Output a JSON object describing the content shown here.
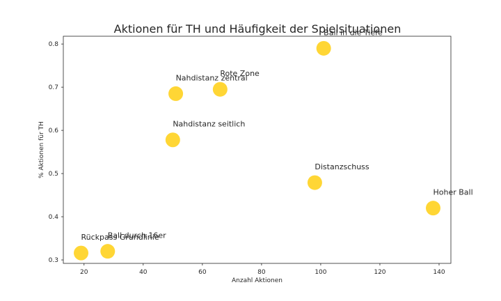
{
  "chart_data": {
    "type": "scatter",
    "title": "Aktionen für TH und Häufigkeit der Spielsituationen",
    "xlabel": "Anzahl Aktionen",
    "ylabel": "% Aktionen für TH",
    "xlim": [
      13,
      144
    ],
    "ylim": [
      0.292,
      0.818
    ],
    "xticks": [
      20,
      40,
      60,
      80,
      100,
      120,
      140
    ],
    "yticks": [
      0.3,
      0.4,
      0.5,
      0.6,
      0.7,
      0.8
    ],
    "grid": false,
    "marker_color": "#FFD21F",
    "points": [
      {
        "label": "Ball in die Tiefe",
        "x": 101,
        "y": 0.79
      },
      {
        "label": "Rote Zone",
        "x": 66,
        "y": 0.695
      },
      {
        "label": "Nahdistanz zentral",
        "x": 51,
        "y": 0.685
      },
      {
        "label": "Nahdistanz seitlich",
        "x": 50,
        "y": 0.578
      },
      {
        "label": "Distanzschuss",
        "x": 98,
        "y": 0.479
      },
      {
        "label": "Hoher Ball",
        "x": 138,
        "y": 0.42
      },
      {
        "label": "Ball durch 16er",
        "x": 28,
        "y": 0.32
      },
      {
        "label": "Rückpass Grundlinie",
        "x": 19,
        "y": 0.316
      }
    ]
  }
}
